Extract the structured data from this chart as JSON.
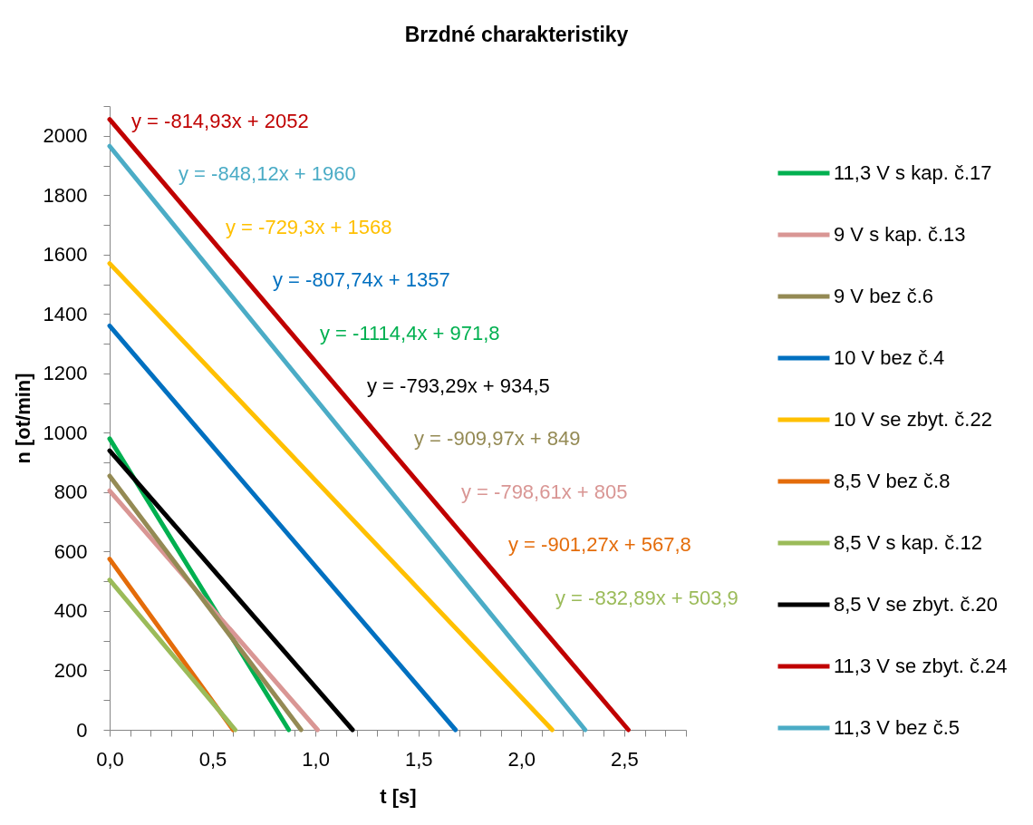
{
  "chart_data": {
    "type": "line",
    "title": "Brzdné charakteristiky",
    "xlabel": "t [s]",
    "ylabel": "n [ot/min]",
    "xlim": [
      0,
      2.8
    ],
    "xticks": [
      {
        "value": 0,
        "label": "0,0"
      },
      {
        "value": 0.1,
        "label": null
      },
      {
        "value": 0.2,
        "label": null
      },
      {
        "value": 0.3,
        "label": null
      },
      {
        "value": 0.4,
        "label": null
      },
      {
        "value": 0.5,
        "label": "0,5"
      },
      {
        "value": 0.6,
        "label": null
      },
      {
        "value": 0.7,
        "label": null
      },
      {
        "value": 0.8,
        "label": null
      },
      {
        "value": 0.9,
        "label": null
      },
      {
        "value": 1.0,
        "label": "1,0"
      },
      {
        "value": 1.1,
        "label": null
      },
      {
        "value": 1.2,
        "label": null
      },
      {
        "value": 1.3,
        "label": null
      },
      {
        "value": 1.4,
        "label": null
      },
      {
        "value": 1.5,
        "label": "1,5"
      },
      {
        "value": 1.6,
        "label": null
      },
      {
        "value": 1.7,
        "label": null
      },
      {
        "value": 1.8,
        "label": null
      },
      {
        "value": 1.9,
        "label": null
      },
      {
        "value": 2.0,
        "label": "2,0"
      },
      {
        "value": 2.1,
        "label": null
      },
      {
        "value": 2.2,
        "label": null
      },
      {
        "value": 2.3,
        "label": null
      },
      {
        "value": 2.4,
        "label": null
      },
      {
        "value": 2.5,
        "label": "2,5"
      },
      {
        "value": 2.6,
        "label": null
      },
      {
        "value": 2.7,
        "label": null
      },
      {
        "value": 2.8,
        "label": null
      }
    ],
    "ylim": [
      0,
      2100
    ],
    "yticks": [
      0,
      {
        "value": 100,
        "label": null
      },
      200,
      {
        "value": 300,
        "label": null
      },
      400,
      {
        "value": 500,
        "label": null
      },
      600,
      {
        "value": 700,
        "label": null
      },
      800,
      {
        "value": 900,
        "label": null
      },
      1000,
      {
        "value": 1100,
        "label": null
      },
      1200,
      {
        "value": 1300,
        "label": null
      },
      1400,
      {
        "value": 1500,
        "label": null
      },
      1600,
      {
        "value": 1700,
        "label": null
      },
      1800,
      {
        "value": 1900,
        "label": null
      },
      2000,
      {
        "value": 2100,
        "label": null
      }
    ],
    "legend": "right",
    "series": [
      {
        "name": "11,3 V s kap. č.17",
        "color": "#00b050",
        "x": [
          0,
          0.87
        ],
        "values": [
          980,
          0
        ]
      },
      {
        "name": "9 V s kap. č.13",
        "color": "#d99694",
        "x": [
          0,
          1.01
        ],
        "values": [
          805,
          0
        ]
      },
      {
        "name": "9 V bez č.6",
        "color": "#948a54",
        "x": [
          0,
          0.93
        ],
        "values": [
          855,
          0
        ]
      },
      {
        "name": "10 V bez č.4",
        "color": "#0070c0",
        "x": [
          0,
          1.68
        ],
        "values": [
          1360,
          0
        ]
      },
      {
        "name": "10 V se zbyt. č.22",
        "color": "#ffc000",
        "x": [
          0,
          2.15
        ],
        "values": [
          1570,
          0
        ]
      },
      {
        "name": "8,5 V bez č.8",
        "color": "#e46c0a",
        "x": [
          0,
          0.6
        ],
        "values": [
          575,
          0
        ]
      },
      {
        "name": "8,5 V s kap. č.12",
        "color": "#9bbb59",
        "x": [
          0,
          0.61
        ],
        "values": [
          505,
          0
        ]
      },
      {
        "name": "8,5 V se zbyt. č.20",
        "color": "#000000",
        "x": [
          0,
          1.18
        ],
        "values": [
          940,
          0
        ]
      },
      {
        "name": "11,3 V se zbyt. č.24",
        "color": "#c00000",
        "x": [
          0,
          2.52
        ],
        "values": [
          2055,
          0
        ]
      },
      {
        "name": "11,3 V bez č.5",
        "color": "#4bacc6",
        "x": [
          0,
          2.31
        ],
        "values": [
          1965,
          0
        ]
      }
    ],
    "annotations": [
      "y = -1114,4x + 971,8",
      "y = -798,61x + 805",
      "y = -909,97x + 849",
      "y = -807,74x + 1357",
      "y = -729,3x + 1568",
      "y = -901,27x + 567,8",
      "y = -832,89x + 503,9",
      "y = -793,29x + 934,5",
      "y = -814,93x + 2052",
      "y = -848,12x + 1960"
    ]
  }
}
